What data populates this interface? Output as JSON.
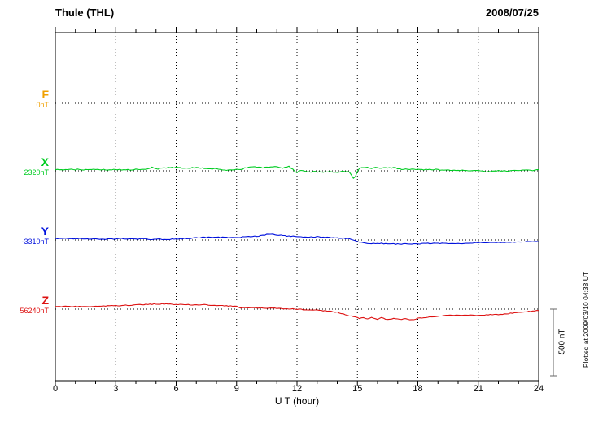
{
  "chart_data": {
    "type": "line",
    "title": "Thule (THL)",
    "date": "2008/07/25",
    "xlabel": "U T (hour)",
    "x_range": [
      0,
      24
    ],
    "x_ticks": [
      0,
      3,
      6,
      9,
      12,
      15,
      18,
      21,
      24
    ],
    "x_minor_step": 1,
    "grid": "dotted-vertical-at-major-ticks, dotted-horizontal-at-baselines",
    "legend_position": "left-of-plot",
    "scalebar": {
      "label": "500 nT",
      "nT": 500
    },
    "plotted_note": "Plotted at 2009/03/10 04:38 UT",
    "series": [
      {
        "name": "F",
        "baseline_label": "0nT",
        "color": "#f0a000",
        "noise_nT": 0,
        "points": []
      },
      {
        "name": "X",
        "baseline_label": "2320nT",
        "color": "#00cc22",
        "noise_nT": 4,
        "points": [
          [
            0,
            10
          ],
          [
            0.5,
            8
          ],
          [
            1,
            10
          ],
          [
            1.5,
            7
          ],
          [
            2,
            10
          ],
          [
            2.5,
            8
          ],
          [
            3,
            9
          ],
          [
            3.5,
            7
          ],
          [
            4,
            10
          ],
          [
            4.5,
            14
          ],
          [
            4.8,
            26
          ],
          [
            5.1,
            16
          ],
          [
            5.4,
            22
          ],
          [
            6,
            25
          ],
          [
            6.5,
            21
          ],
          [
            7,
            23
          ],
          [
            7.5,
            18
          ],
          [
            8,
            15
          ],
          [
            8.4,
            6
          ],
          [
            8.8,
            8
          ],
          [
            9.2,
            10
          ],
          [
            9.5,
            24
          ],
          [
            10,
            28
          ],
          [
            10.3,
            22
          ],
          [
            10.6,
            26
          ],
          [
            11,
            30
          ],
          [
            11.3,
            22
          ],
          [
            11.6,
            34
          ],
          [
            11.8,
            10
          ],
          [
            12,
            -14
          ],
          [
            12.2,
            6
          ],
          [
            12.5,
            -10
          ],
          [
            12.8,
            -6
          ],
          [
            13.2,
            -10
          ],
          [
            13.6,
            -5
          ],
          [
            14,
            -10
          ],
          [
            14.3,
            -6
          ],
          [
            14.6,
            -9
          ],
          [
            14.75,
            -40
          ],
          [
            14.85,
            -70
          ],
          [
            14.95,
            -20
          ],
          [
            15.1,
            18
          ],
          [
            15.4,
            26
          ],
          [
            15.7,
            20
          ],
          [
            16,
            24
          ],
          [
            16.4,
            20
          ],
          [
            16.8,
            23
          ],
          [
            17.2,
            13
          ],
          [
            17.6,
            11
          ],
          [
            18,
            12
          ],
          [
            18.5,
            9
          ],
          [
            19,
            9
          ],
          [
            19.5,
            6
          ],
          [
            20,
            3
          ],
          [
            20.5,
            3
          ],
          [
            21,
            2
          ],
          [
            21.4,
            -11
          ],
          [
            21.7,
            -3
          ],
          [
            22,
            1
          ],
          [
            22.5,
            0
          ],
          [
            23,
            2
          ],
          [
            23.5,
            3
          ],
          [
            24,
            6
          ]
        ]
      },
      {
        "name": "Y",
        "baseline_label": "-3310nT",
        "color": "#0011dd",
        "noise_nT": 3,
        "points": [
          [
            0,
            9
          ],
          [
            0.4,
            13
          ],
          [
            0.8,
            10
          ],
          [
            1.2,
            11
          ],
          [
            1.6,
            8
          ],
          [
            2,
            9
          ],
          [
            2.4,
            6
          ],
          [
            2.8,
            8
          ],
          [
            3.2,
            11
          ],
          [
            3.6,
            8
          ],
          [
            4,
            6
          ],
          [
            4.4,
            9
          ],
          [
            4.8,
            5
          ],
          [
            5.2,
            7
          ],
          [
            5.5,
            1
          ],
          [
            5.8,
            6
          ],
          [
            6.2,
            9
          ],
          [
            6.6,
            12
          ],
          [
            7,
            17
          ],
          [
            7.5,
            20
          ],
          [
            8,
            22
          ],
          [
            8.5,
            19
          ],
          [
            9,
            20
          ],
          [
            9.5,
            24
          ],
          [
            10,
            29
          ],
          [
            10.3,
            34
          ],
          [
            10.6,
            44
          ],
          [
            10.9,
            40
          ],
          [
            11.2,
            35
          ],
          [
            11.5,
            30
          ],
          [
            12,
            26
          ],
          [
            12.5,
            22
          ],
          [
            13,
            25
          ],
          [
            13.4,
            20
          ],
          [
            13.8,
            17
          ],
          [
            14.2,
            14
          ],
          [
            14.6,
            11
          ],
          [
            15,
            -12
          ],
          [
            15.4,
            -23
          ],
          [
            15.8,
            -27
          ],
          [
            16.2,
            -26
          ],
          [
            16.6,
            -29
          ],
          [
            17,
            -30
          ],
          [
            17.5,
            -28
          ],
          [
            18,
            -29
          ],
          [
            18.5,
            -26
          ],
          [
            19,
            -25
          ],
          [
            19.5,
            -27
          ],
          [
            20,
            -28
          ],
          [
            20.5,
            -24
          ],
          [
            21,
            -20
          ],
          [
            21.5,
            -19
          ],
          [
            22,
            -18
          ],
          [
            22.5,
            -17
          ],
          [
            23,
            -15
          ],
          [
            23.5,
            -13
          ],
          [
            24,
            -12
          ]
        ]
      },
      {
        "name": "Z",
        "baseline_label": "56240nT",
        "color": "#dd1111",
        "noise_nT": 3,
        "points": [
          [
            0,
            18
          ],
          [
            0.5,
            20
          ],
          [
            1,
            21
          ],
          [
            1.5,
            19
          ],
          [
            2,
            21
          ],
          [
            2.5,
            23
          ],
          [
            3,
            26
          ],
          [
            3.5,
            28
          ],
          [
            4,
            31
          ],
          [
            4.5,
            35
          ],
          [
            5,
            38
          ],
          [
            5.5,
            40
          ],
          [
            5.8,
            37
          ],
          [
            6.2,
            34
          ],
          [
            6.6,
            33
          ],
          [
            7,
            30
          ],
          [
            7.4,
            33
          ],
          [
            7.8,
            29
          ],
          [
            8.2,
            27
          ],
          [
            8.6,
            24
          ],
          [
            9,
            20
          ],
          [
            9.2,
            8
          ],
          [
            9.4,
            14
          ],
          [
            9.7,
            10
          ],
          [
            10,
            11
          ],
          [
            10.4,
            8
          ],
          [
            10.8,
            6
          ],
          [
            11.2,
            5
          ],
          [
            11.6,
            3
          ],
          [
            12,
            0
          ],
          [
            12.4,
            -4
          ],
          [
            12.8,
            -7
          ],
          [
            13.2,
            -10
          ],
          [
            13.6,
            -14
          ],
          [
            14,
            -24
          ],
          [
            14.3,
            -38
          ],
          [
            14.6,
            -50
          ],
          [
            14.9,
            -58
          ],
          [
            15.1,
            -72
          ],
          [
            15.3,
            -62
          ],
          [
            15.5,
            -74
          ],
          [
            15.7,
            -64
          ],
          [
            16,
            -78
          ],
          [
            16.2,
            -66
          ],
          [
            16.5,
            -80
          ],
          [
            16.8,
            -70
          ],
          [
            17.1,
            -78
          ],
          [
            17.4,
            -72
          ],
          [
            17.7,
            -80
          ],
          [
            18,
            -70
          ],
          [
            18.4,
            -62
          ],
          [
            18.8,
            -55
          ],
          [
            19.2,
            -50
          ],
          [
            19.6,
            -47
          ],
          [
            20,
            -46
          ],
          [
            20.5,
            -45
          ],
          [
            21,
            -46
          ],
          [
            21.5,
            -42
          ],
          [
            22,
            -40
          ],
          [
            22.5,
            -33
          ],
          [
            23,
            -25
          ],
          [
            23.5,
            -17
          ],
          [
            24,
            -9
          ]
        ]
      }
    ]
  }
}
